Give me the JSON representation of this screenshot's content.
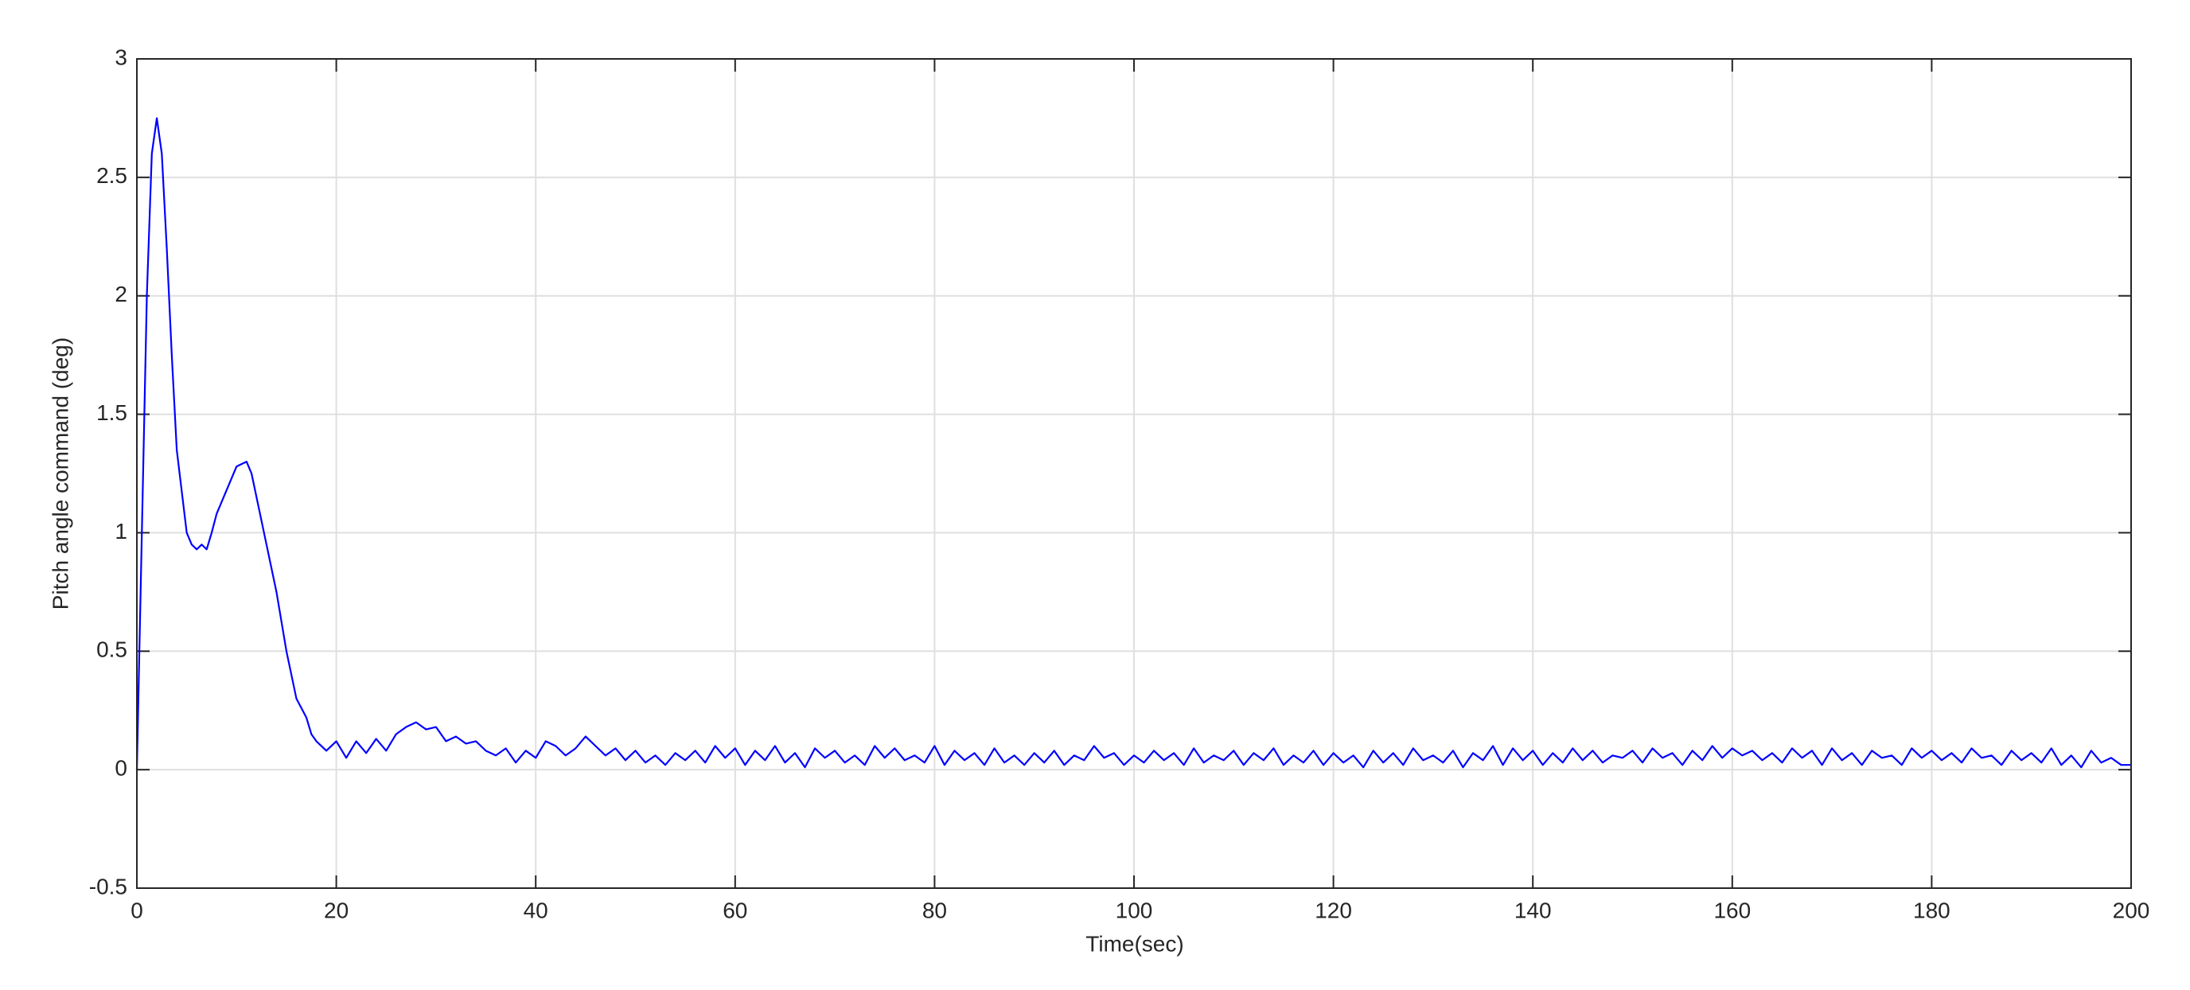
{
  "chart_data": {
    "type": "line",
    "xlabel": "Time(sec)",
    "ylabel": "Pitch angle command (deg)",
    "x": [
      0,
      0.5,
      1,
      1.5,
      2,
      2.5,
      3,
      3.5,
      4,
      5,
      5.5,
      6,
      6.5,
      7,
      7.5,
      8,
      9,
      10,
      11,
      11.5,
      12,
      13,
      14,
      15,
      16,
      17,
      17.5,
      18,
      19,
      20,
      21,
      22,
      23,
      24,
      25,
      26,
      27,
      28,
      29,
      30,
      31,
      32,
      33,
      34,
      35,
      36,
      37,
      38,
      39,
      40,
      41,
      42,
      43,
      44,
      45,
      46,
      47,
      48,
      49,
      50,
      51,
      52,
      53,
      54,
      55,
      56,
      57,
      58,
      59,
      60,
      61,
      62,
      63,
      64,
      65,
      66,
      67,
      68,
      69,
      70,
      71,
      72,
      73,
      74,
      75,
      76,
      77,
      78,
      79,
      80,
      81,
      82,
      83,
      84,
      85,
      86,
      87,
      88,
      89,
      90,
      91,
      92,
      93,
      94,
      95,
      96,
      97,
      98,
      99,
      100,
      101,
      102,
      103,
      104,
      105,
      106,
      107,
      108,
      109,
      110,
      111,
      112,
      113,
      114,
      115,
      116,
      117,
      118,
      119,
      120,
      121,
      122,
      123,
      124,
      125,
      126,
      127,
      128,
      129,
      130,
      131,
      132,
      133,
      134,
      135,
      136,
      137,
      138,
      139,
      140,
      141,
      142,
      143,
      144,
      145,
      146,
      147,
      148,
      149,
      150,
      151,
      152,
      153,
      154,
      155,
      156,
      157,
      158,
      159,
      160,
      161,
      162,
      163,
      164,
      165,
      166,
      167,
      168,
      169,
      170,
      171,
      172,
      173,
      174,
      175,
      176,
      177,
      178,
      179,
      180,
      181,
      182,
      183,
      184,
      185,
      186,
      187,
      188,
      189,
      190,
      191,
      192,
      193,
      194,
      195,
      196,
      197,
      198,
      199,
      200
    ],
    "values": [
      0,
      1.0,
      2.0,
      2.6,
      2.75,
      2.6,
      2.2,
      1.75,
      1.35,
      1.0,
      0.95,
      0.93,
      0.95,
      0.93,
      1.0,
      1.08,
      1.18,
      1.28,
      1.3,
      1.25,
      1.15,
      0.95,
      0.75,
      0.5,
      0.3,
      0.22,
      0.15,
      0.12,
      0.08,
      0.12,
      0.05,
      0.12,
      0.07,
      0.13,
      0.08,
      0.15,
      0.18,
      0.2,
      0.17,
      0.18,
      0.12,
      0.14,
      0.11,
      0.12,
      0.08,
      0.06,
      0.09,
      0.03,
      0.08,
      0.05,
      0.12,
      0.1,
      0.06,
      0.09,
      0.14,
      0.1,
      0.06,
      0.09,
      0.04,
      0.08,
      0.03,
      0.06,
      0.02,
      0.07,
      0.04,
      0.08,
      0.03,
      0.1,
      0.05,
      0.09,
      0.02,
      0.08,
      0.04,
      0.1,
      0.03,
      0.07,
      0.01,
      0.09,
      0.05,
      0.08,
      0.03,
      0.06,
      0.02,
      0.1,
      0.05,
      0.09,
      0.04,
      0.06,
      0.03,
      0.1,
      0.02,
      0.08,
      0.04,
      0.07,
      0.02,
      0.09,
      0.03,
      0.06,
      0.02,
      0.07,
      0.03,
      0.08,
      0.02,
      0.06,
      0.04,
      0.1,
      0.05,
      0.07,
      0.02,
      0.06,
      0.03,
      0.08,
      0.04,
      0.07,
      0.02,
      0.09,
      0.03,
      0.06,
      0.04,
      0.08,
      0.02,
      0.07,
      0.04,
      0.09,
      0.02,
      0.06,
      0.03,
      0.08,
      0.02,
      0.07,
      0.03,
      0.06,
      0.01,
      0.08,
      0.03,
      0.07,
      0.02,
      0.09,
      0.04,
      0.06,
      0.03,
      0.08,
      0.01,
      0.07,
      0.04,
      0.1,
      0.02,
      0.09,
      0.04,
      0.08,
      0.02,
      0.07,
      0.03,
      0.09,
      0.04,
      0.08,
      0.03,
      0.06,
      0.05,
      0.08,
      0.03,
      0.09,
      0.05,
      0.07,
      0.02,
      0.08,
      0.04,
      0.1,
      0.05,
      0.09,
      0.06,
      0.08,
      0.04,
      0.07,
      0.03,
      0.09,
      0.05,
      0.08,
      0.02,
      0.09,
      0.04,
      0.07,
      0.02,
      0.08,
      0.05,
      0.06,
      0.02,
      0.09,
      0.05,
      0.08,
      0.04,
      0.07,
      0.03,
      0.09,
      0.05,
      0.06,
      0.02,
      0.08,
      0.04,
      0.07,
      0.03,
      0.09,
      0.02,
      0.06,
      0.01,
      0.08,
      0.03,
      0.05,
      0.02,
      0.02
    ],
    "color": "#0000ff",
    "xlim": [
      0,
      200
    ],
    "xticks": [
      0,
      20,
      40,
      60,
      80,
      100,
      120,
      140,
      160,
      180,
      200
    ],
    "ylim": [
      -0.5,
      3
    ],
    "yticks": [
      -0.5,
      0,
      0.5,
      1,
      1.5,
      2,
      2.5,
      3
    ],
    "grid": true
  }
}
